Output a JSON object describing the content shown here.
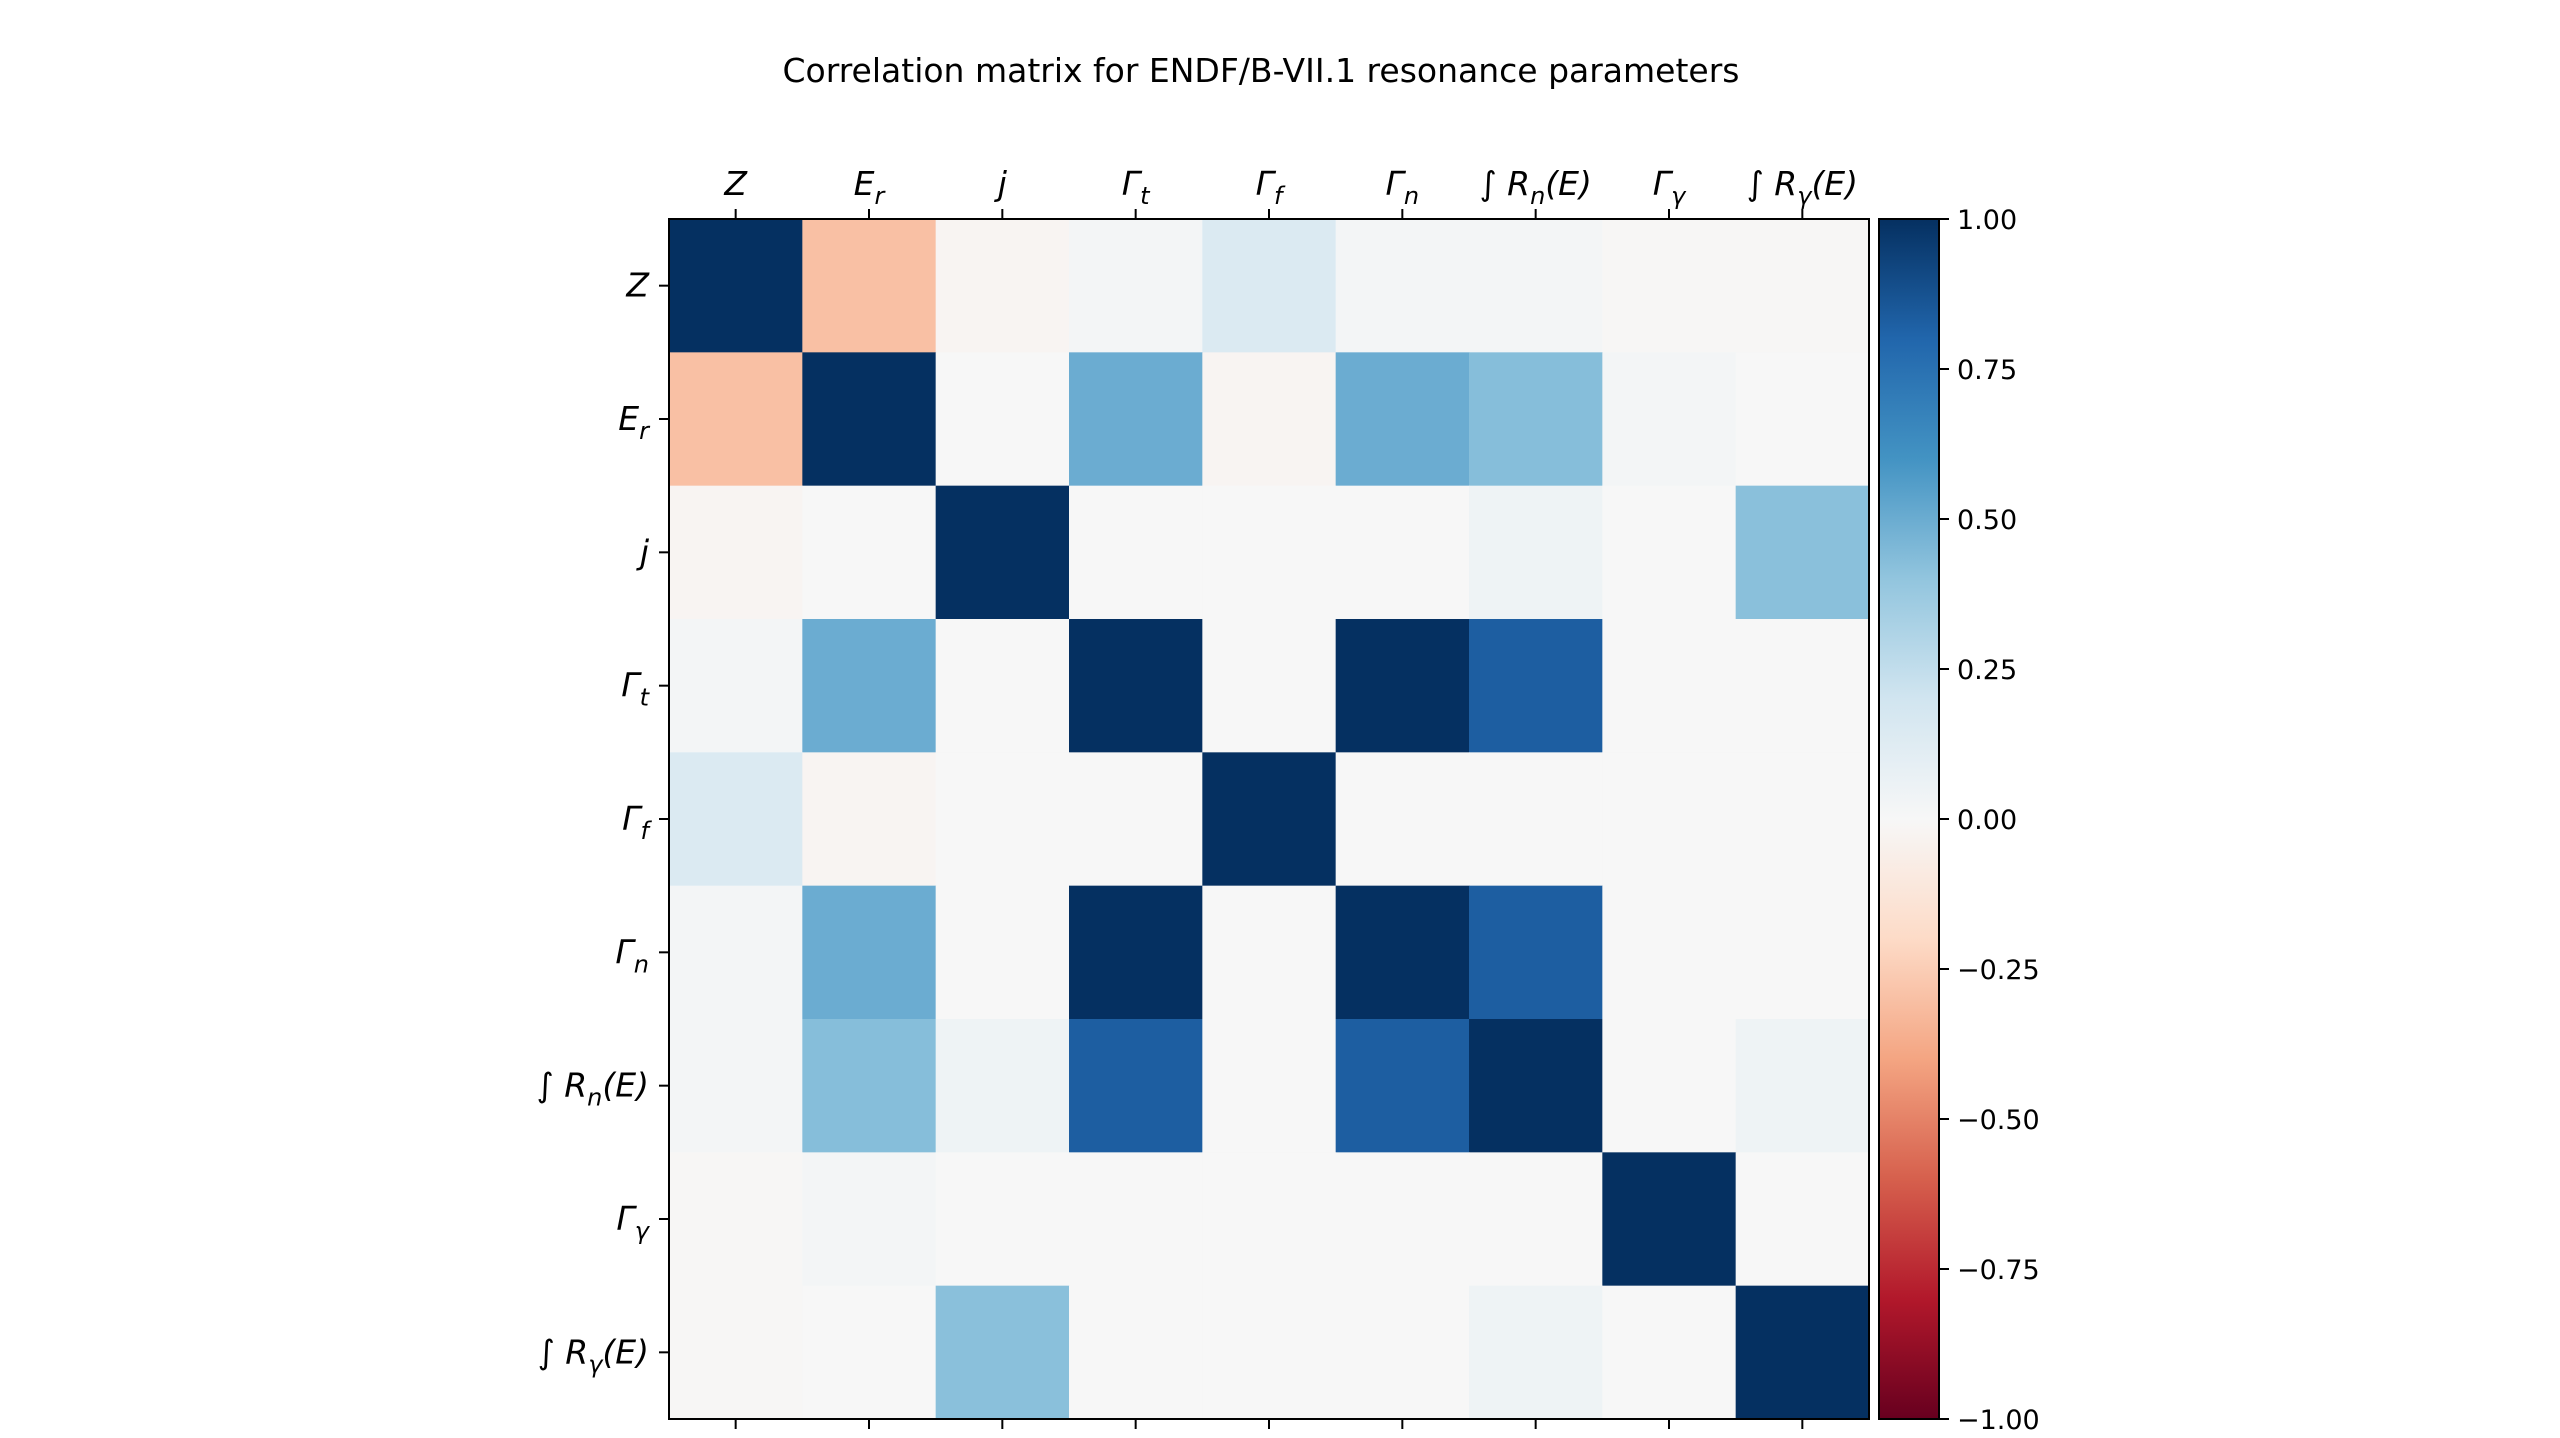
{
  "chart_data": {
    "type": "heatmap",
    "title": "Correlation matrix for ENDF/B-VII.1 resonance parameters",
    "labels": [
      "Z",
      "E_r",
      "j",
      "Γ_t",
      "Γ_f",
      "Γ_n",
      "∫ R_n(E)",
      "Γ_γ",
      "∫ R_γ(E)"
    ],
    "values": [
      [
        1.0,
        -0.3,
        -0.02,
        0.02,
        0.15,
        0.02,
        0.02,
        -0.01,
        -0.01
      ],
      [
        -0.3,
        1.0,
        0.0,
        0.5,
        -0.02,
        0.5,
        0.43,
        0.02,
        0.0
      ],
      [
        -0.02,
        0.0,
        1.0,
        0.0,
        0.0,
        0.0,
        0.05,
        0.0,
        0.42
      ],
      [
        0.02,
        0.5,
        0.0,
        1.0,
        0.0,
        1.0,
        0.83,
        0.0,
        0.0
      ],
      [
        0.15,
        -0.02,
        0.0,
        0.0,
        1.0,
        0.0,
        0.0,
        0.0,
        0.0
      ],
      [
        0.02,
        0.5,
        0.0,
        1.0,
        0.0,
        1.0,
        0.83,
        0.0,
        0.0
      ],
      [
        0.02,
        0.43,
        0.05,
        0.83,
        0.0,
        0.83,
        1.0,
        0.0,
        0.05
      ],
      [
        -0.01,
        0.02,
        0.0,
        0.0,
        0.0,
        0.0,
        0.0,
        1.0,
        0.0
      ],
      [
        -0.01,
        0.0,
        0.42,
        0.0,
        0.0,
        0.0,
        0.05,
        0.0,
        1.0
      ]
    ],
    "colormap": "RdBu",
    "vmin": -1.0,
    "vmax": 1.0,
    "colorbar_ticks": [
      "1.00",
      "0.75",
      "0.50",
      "0.25",
      "0.00",
      "−0.25",
      "−0.50",
      "−0.75",
      "−1.00"
    ],
    "colorbar_tick_values": [
      1.0,
      0.75,
      0.5,
      0.25,
      0.0,
      -0.25,
      -0.5,
      -0.75,
      -1.0
    ],
    "x_axis_position": "top",
    "grid": false,
    "legend": "colorbar-right"
  }
}
